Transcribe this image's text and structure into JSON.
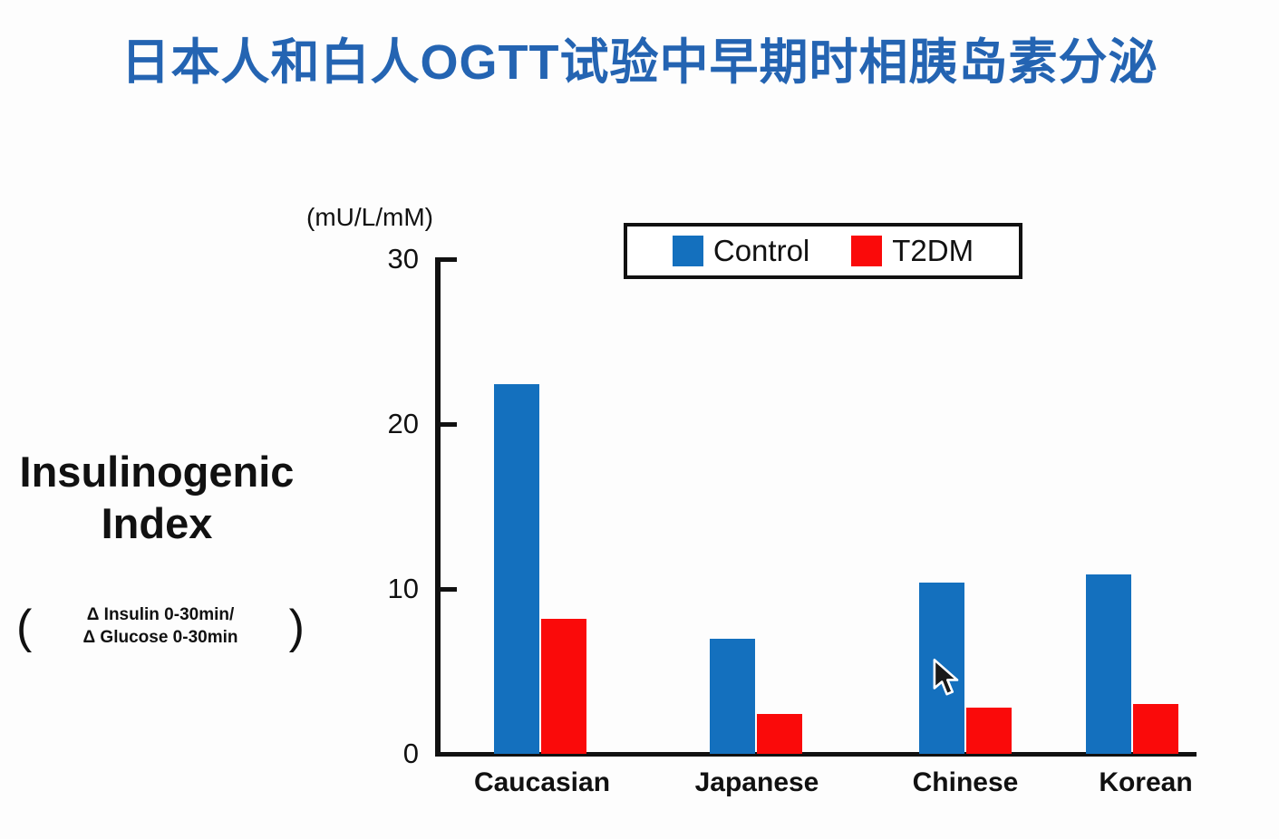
{
  "slide_title": "日本人和白人OGTT试验中早期时相胰岛素分泌",
  "colors": {
    "title_blue": "#2464b2",
    "control_blue": "#1470be",
    "t2dm_red": "#fa0a0a",
    "axis_black": "#111111"
  },
  "axis_left_title": {
    "line1": "Insulinogenic",
    "line2": "Index"
  },
  "formula": {
    "open": "(",
    "line1": "Δ Insulin 0-30min/",
    "line2": "Δ Glucose 0-30min",
    "close": ")"
  },
  "y_unit_label": "(mU/L/mM)",
  "legend": {
    "items": [
      {
        "label": "Control",
        "color": "#1470be"
      },
      {
        "label": "T2DM",
        "color": "#fa0a0a"
      }
    ]
  },
  "chart_data": {
    "type": "bar",
    "title": "",
    "categories": [
      "Caucasian",
      "Japanese",
      "Chinese",
      "Korean"
    ],
    "series": [
      {
        "name": "Control",
        "color": "#1470be",
        "values": [
          22.4,
          7.0,
          10.4,
          10.9
        ]
      },
      {
        "name": "T2DM",
        "color": "#fa0a0a",
        "values": [
          8.2,
          2.4,
          2.8,
          3.0
        ]
      }
    ],
    "xlabel": "",
    "ylabel": "(mU/L/mM)",
    "yticks": [
      0,
      10,
      20,
      30
    ],
    "ylim": [
      0,
      30
    ],
    "grid": false,
    "legend_position": "top-right"
  }
}
